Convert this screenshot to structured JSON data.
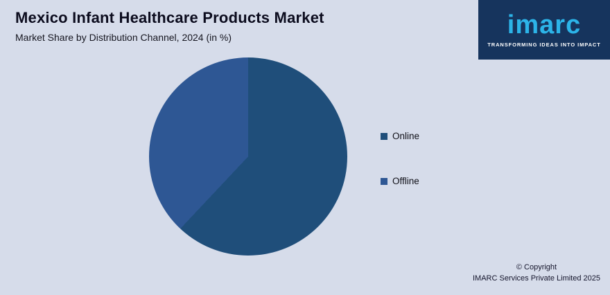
{
  "header": {
    "title": "Mexico Infant Healthcare Products Market",
    "subtitle": "Market Share by Distribution Channel, 2024 (in %)"
  },
  "logo": {
    "brand": "imarc",
    "tagline": "TRANSFORMING IDEAS INTO IMPACT",
    "bg_color": "#16345d",
    "accent_color": "#2cb4e8"
  },
  "chart_data": {
    "type": "pie",
    "title": "Market Share by Distribution Channel, 2024 (in %)",
    "categories": [
      "Online",
      "Offline"
    ],
    "values": [
      62,
      38
    ],
    "colors": [
      "#1f4e7a",
      "#2e5794"
    ],
    "legend_position": "right",
    "start_angle_deg": 0,
    "direction": "clockwise"
  },
  "footer": {
    "line1": "© Copyright",
    "line2": "IMARC Services Private Limited 2025"
  }
}
